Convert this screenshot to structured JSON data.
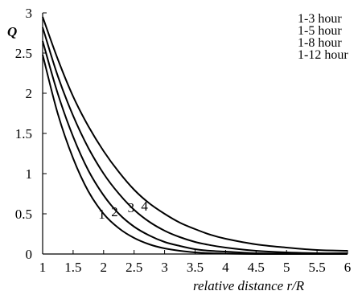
{
  "chart_data": {
    "type": "line",
    "title": "",
    "ylabel": "Q",
    "xlabel": "relative distance r/R",
    "xlim": [
      1,
      6
    ],
    "ylim": [
      0,
      3
    ],
    "x_ticks": [
      "1",
      "1.5",
      "2",
      "2.5",
      "3",
      "3.5",
      "4",
      "4.5",
      "5",
      "5.5",
      "6"
    ],
    "y_ticks": [
      "0",
      "0.5",
      "1",
      "1.5",
      "2",
      "2.5",
      "3"
    ],
    "grid": false,
    "legend_position": "top-right",
    "legend": [
      "1-3 hour",
      "1-5 hour",
      "1-8 hour",
      "1-12 hour"
    ],
    "series": [
      {
        "label": "1",
        "x": [
          1,
          1.25,
          1.5,
          1.75,
          2,
          2.25,
          2.5,
          2.75,
          3,
          3.25,
          3.5,
          3.75,
          4,
          4.5,
          5,
          5.5,
          6
        ],
        "values": [
          2.48,
          1.74,
          1.19,
          0.78,
          0.5,
          0.32,
          0.2,
          0.12,
          0.07,
          0.04,
          0.02,
          0.01,
          0.005,
          0.0,
          0.0,
          0.0,
          0.0
        ]
      },
      {
        "label": "2",
        "x": [
          1,
          1.25,
          1.5,
          1.75,
          2,
          2.25,
          2.5,
          2.75,
          3,
          3.25,
          3.5,
          3.75,
          4,
          4.5,
          5,
          5.5,
          6
        ],
        "values": [
          2.65,
          1.99,
          1.46,
          1.04,
          0.73,
          0.5,
          0.34,
          0.23,
          0.15,
          0.1,
          0.06,
          0.04,
          0.03,
          0.01,
          0.005,
          0.0,
          0.0
        ]
      },
      {
        "label": "3",
        "x": [
          1,
          1.25,
          1.5,
          1.75,
          2,
          2.25,
          2.5,
          2.75,
          3,
          3.25,
          3.5,
          3.75,
          4,
          4.5,
          5,
          5.5,
          6
        ],
        "values": [
          2.82,
          2.21,
          1.72,
          1.32,
          1.0,
          0.75,
          0.55,
          0.4,
          0.29,
          0.21,
          0.15,
          0.11,
          0.08,
          0.04,
          0.02,
          0.01,
          0.01
        ]
      },
      {
        "label": "4",
        "x": [
          1,
          1.25,
          1.5,
          1.75,
          2,
          2.25,
          2.5,
          2.75,
          3,
          3.25,
          3.5,
          3.75,
          4,
          4.5,
          5,
          5.5,
          6
        ],
        "values": [
          2.95,
          2.42,
          1.96,
          1.59,
          1.28,
          1.02,
          0.8,
          0.63,
          0.5,
          0.39,
          0.31,
          0.24,
          0.19,
          0.12,
          0.08,
          0.05,
          0.04
        ]
      }
    ],
    "curve_labels": [
      {
        "text": "1",
        "x": 1.97,
        "y": 0.5
      },
      {
        "text": "2",
        "x": 2.18,
        "y": 0.53
      },
      {
        "text": "3",
        "x": 2.45,
        "y": 0.58
      },
      {
        "text": "4",
        "x": 2.67,
        "y": 0.6
      }
    ]
  }
}
